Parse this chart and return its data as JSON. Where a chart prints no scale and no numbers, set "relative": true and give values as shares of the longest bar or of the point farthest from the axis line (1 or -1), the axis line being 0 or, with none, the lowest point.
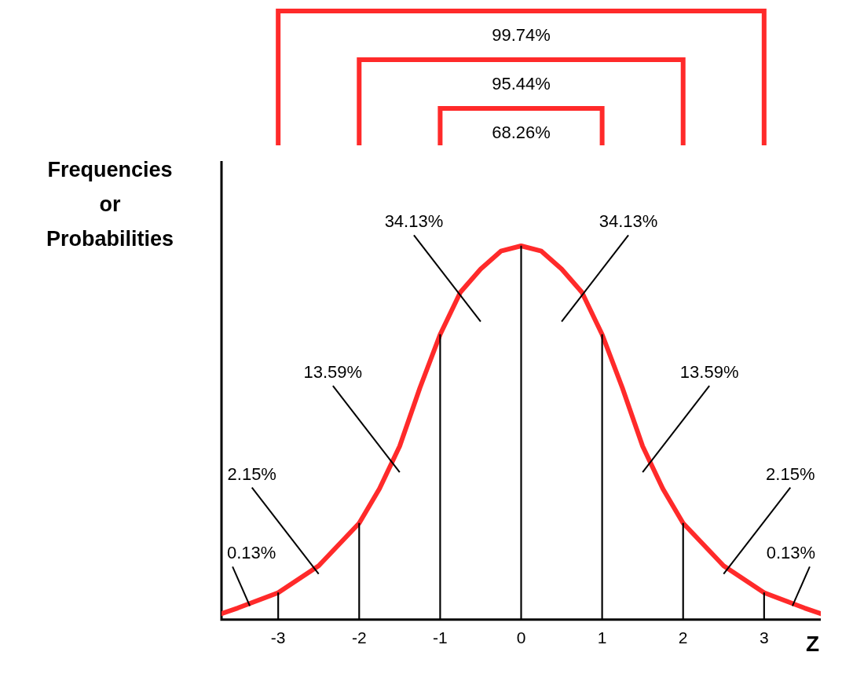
{
  "chart_data": {
    "type": "line",
    "relative": true,
    "xlabel": "Z",
    "ylabel": "Frequencies or Probabilities",
    "x": [
      -3.7,
      -3.5,
      -3,
      -2.5,
      -2,
      -1.75,
      -1.5,
      -1.25,
      -1,
      -0.75,
      -0.5,
      -0.25,
      0,
      0.25,
      0.5,
      0.75,
      1,
      1.25,
      1.5,
      1.75,
      2,
      2.5,
      3,
      3.5,
      3.7
    ],
    "series": [
      {
        "type": "bar",
        "color": "#000000",
        "x": [
          -3,
          -2,
          -1,
          0,
          1,
          2,
          3
        ],
        "values": [
          0.072,
          0.258,
          0.763,
          1,
          0.763,
          0.258,
          0.072
        ]
      },
      {
        "color": "#ff2a2a",
        "values": [
          0.016,
          0.031,
          0.072,
          0.144,
          0.258,
          0.35,
          0.464,
          0.62,
          0.763,
          0.876,
          0.938,
          0.986,
          1,
          0.986,
          0.938,
          0.876,
          0.763,
          0.62,
          0.464,
          0.35,
          0.258,
          0.144,
          0.072,
          0.031,
          0.016
        ]
      }
    ],
    "xlim": [
      -3.7,
      3.7
    ],
    "xticks": [
      -3,
      -2,
      -1,
      0,
      1,
      2,
      3
    ],
    "grid": false,
    "legend": false,
    "marker": "none",
    "line_style": "solid",
    "annotations": [
      "99.74%",
      "95.44%",
      "68.26%",
      "34.13%",
      "34.13%",
      "13.59%",
      "13.59%",
      "2.15%",
      "2.15%",
      "0.13%",
      "0.13%"
    ]
  }
}
